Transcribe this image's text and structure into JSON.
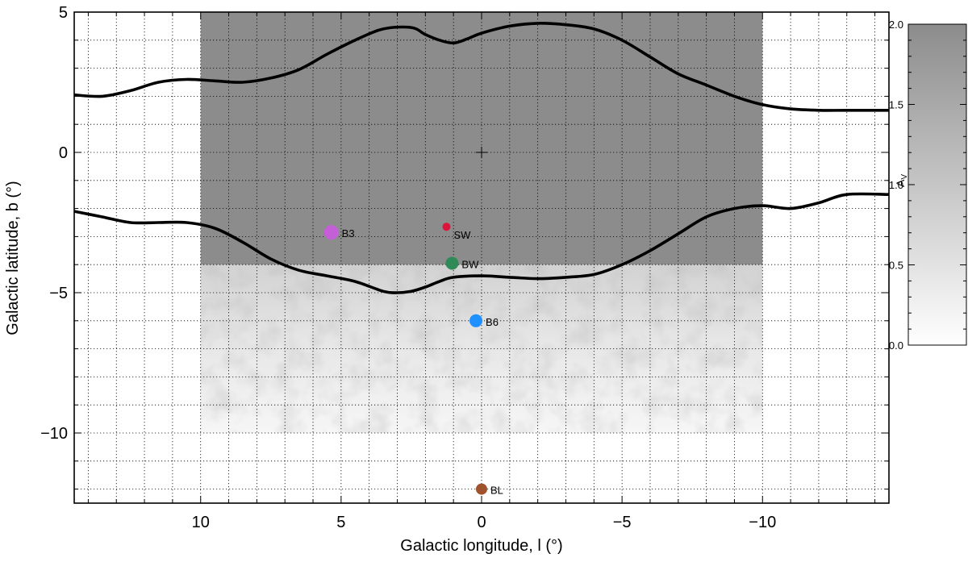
{
  "chart_data": {
    "type": "map",
    "title": "",
    "xlabel": "Galactic longitude, l (°)",
    "ylabel": "Galactic latitude, b (°)",
    "xlim": [
      14.5,
      -14.5
    ],
    "ylim": [
      -12.5,
      5.0
    ],
    "grid": true,
    "x_major_ticks": [
      10,
      5,
      0,
      -5,
      -10
    ],
    "x_tick_labels": [
      "10",
      "5",
      "0",
      "−5",
      "−10"
    ],
    "y_major_ticks": [
      5,
      0,
      -5,
      -10
    ],
    "y_tick_labels": [
      "5",
      "0",
      "−5",
      "−10"
    ],
    "center_marker": {
      "l": 0,
      "b": 0,
      "symbol": "+"
    },
    "extinction_map": {
      "l_range": [
        10,
        -10
      ],
      "b_range": [
        -10,
        5
      ],
      "saturated_above_b": -4.0,
      "saturated_value": 2.0
    },
    "contours": [
      {
        "name": "upper",
        "points": [
          [
            14.5,
            2.05
          ],
          [
            13.5,
            2.0
          ],
          [
            12.5,
            2.2
          ],
          [
            11.5,
            2.5
          ],
          [
            10.5,
            2.6
          ],
          [
            9.5,
            2.55
          ],
          [
            8.5,
            2.5
          ],
          [
            7.5,
            2.65
          ],
          [
            6.5,
            2.95
          ],
          [
            5.5,
            3.5
          ],
          [
            4.5,
            4.0
          ],
          [
            3.5,
            4.4
          ],
          [
            2.5,
            4.45
          ],
          [
            2.0,
            4.2
          ],
          [
            1.5,
            4.0
          ],
          [
            1.0,
            3.9
          ],
          [
            0.5,
            4.05
          ],
          [
            0,
            4.25
          ],
          [
            -1,
            4.5
          ],
          [
            -2,
            4.6
          ],
          [
            -3,
            4.55
          ],
          [
            -4,
            4.4
          ],
          [
            -5,
            4.0
          ],
          [
            -6,
            3.4
          ],
          [
            -7,
            2.8
          ],
          [
            -8,
            2.4
          ],
          [
            -9,
            2.0
          ],
          [
            -10,
            1.7
          ],
          [
            -11,
            1.55
          ],
          [
            -12,
            1.5
          ],
          [
            -13,
            1.5
          ],
          [
            -14.5,
            1.5
          ]
        ]
      },
      {
        "name": "lower",
        "points": [
          [
            14.5,
            -2.1
          ],
          [
            13.5,
            -2.3
          ],
          [
            12.5,
            -2.5
          ],
          [
            11.5,
            -2.5
          ],
          [
            10.5,
            -2.5
          ],
          [
            9.5,
            -2.7
          ],
          [
            8.5,
            -3.2
          ],
          [
            7.5,
            -3.8
          ],
          [
            6.5,
            -4.2
          ],
          [
            5.5,
            -4.4
          ],
          [
            4.5,
            -4.6
          ],
          [
            3.5,
            -4.95
          ],
          [
            3.0,
            -5.0
          ],
          [
            2.5,
            -4.95
          ],
          [
            2.0,
            -4.8
          ],
          [
            1.5,
            -4.6
          ],
          [
            1.0,
            -4.45
          ],
          [
            0,
            -4.4
          ],
          [
            -1,
            -4.45
          ],
          [
            -2,
            -4.5
          ],
          [
            -3,
            -4.45
          ],
          [
            -4,
            -4.35
          ],
          [
            -5,
            -4.0
          ],
          [
            -6,
            -3.5
          ],
          [
            -7,
            -2.9
          ],
          [
            -8,
            -2.3
          ],
          [
            -9,
            -2.0
          ],
          [
            -10,
            -1.9
          ],
          [
            -11,
            -2.0
          ],
          [
            -12,
            -1.8
          ],
          [
            -13,
            -1.5
          ],
          [
            -14.5,
            -1.5
          ]
        ]
      }
    ],
    "fields": [
      {
        "label": "B3",
        "l": 5.35,
        "b": -2.85,
        "color": "#c45fd7",
        "size": 9
      },
      {
        "label": "SW",
        "l": 1.25,
        "b": -2.65,
        "color": "#dc143c",
        "size": 5
      },
      {
        "label": "BW",
        "l": 1.05,
        "b": -3.95,
        "color": "#2e8b57",
        "size": 8
      },
      {
        "label": "B6",
        "l": 0.2,
        "b": -6.0,
        "color": "#1e90ff",
        "size": 8
      },
      {
        "label": "BL",
        "l": 0.0,
        "b": -12.0,
        "color": "#a0522d",
        "size": 7
      }
    ],
    "colorbar": {
      "label": "A_V",
      "label_main": "A",
      "label_sub": "V",
      "range": [
        0.0,
        2.0
      ],
      "ticks": [
        0.0,
        0.5,
        1.0,
        1.5,
        2.0
      ],
      "tick_labels": [
        "0.0",
        "0.5",
        "1.0",
        "1.5",
        "2.0"
      ],
      "color_low": "#ffffff",
      "color_high": "#8c8c8c"
    }
  }
}
